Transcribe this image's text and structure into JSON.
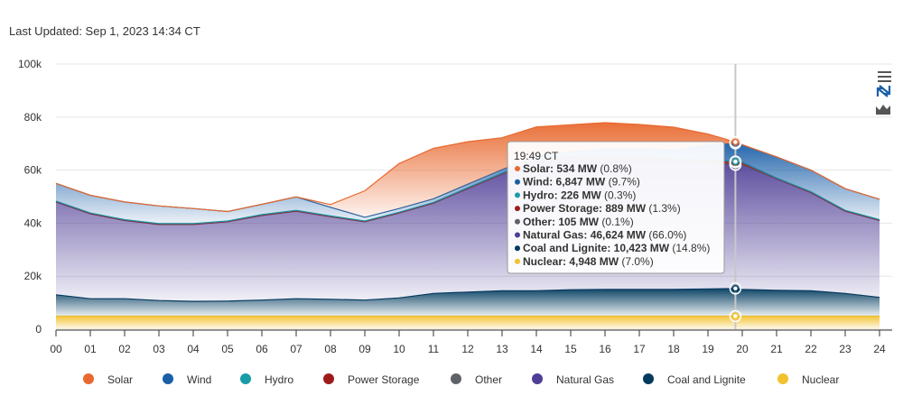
{
  "last_updated": "Last Updated: Sep 1, 2023 14:34 CT",
  "toolbar": {
    "menu_icon": "hamburger-menu-icon",
    "zoom_icon": "reset-zoom-icon",
    "chart_type_icon": "area-chart-icon"
  },
  "chart_data": {
    "type": "area",
    "stacked": true,
    "x": [
      0,
      1,
      2,
      3,
      4,
      5,
      6,
      7,
      8,
      9,
      10,
      11,
      12,
      13,
      14,
      15,
      16,
      17,
      18,
      19,
      19.8,
      20,
      21,
      22,
      23,
      24
    ],
    "xticks": [
      "00",
      "01",
      "02",
      "03",
      "04",
      "05",
      "06",
      "07",
      "08",
      "09",
      "10",
      "11",
      "12",
      "13",
      "14",
      "15",
      "16",
      "17",
      "18",
      "19",
      "20",
      "21",
      "22",
      "23",
      "24"
    ],
    "ylim": [
      0,
      100000
    ],
    "yticks": [
      {
        "value": 0,
        "label": "0"
      },
      {
        "value": 20000,
        "label": "20k"
      },
      {
        "value": 40000,
        "label": "40k"
      },
      {
        "value": 60000,
        "label": "60k"
      },
      {
        "value": 80000,
        "label": "80k"
      },
      {
        "value": 100000,
        "label": "100k"
      }
    ],
    "series": [
      {
        "name": "Nuclear",
        "color": "#f2c12e",
        "values": [
          4948,
          4948,
          4948,
          4948,
          4948,
          4948,
          4948,
          4948,
          4948,
          4948,
          4948,
          4948,
          4948,
          4948,
          4948,
          4948,
          4948,
          4948,
          4948,
          4948,
          4948,
          4948,
          4948,
          4948,
          4948,
          4948
        ]
      },
      {
        "name": "Coal and Lignite",
        "color": "#003a5d",
        "values": [
          8052,
          6552,
          6552,
          5852,
          5552,
          5652,
          6052,
          6552,
          6352,
          6052,
          6852,
          8552,
          9052,
          9552,
          9552,
          9952,
          10052,
          10052,
          10052,
          10252,
          10423,
          10052,
          9752,
          9552,
          8552,
          7052
        ]
      },
      {
        "name": "Natural Gas",
        "color": "#4f3e96",
        "values": [
          35000,
          32000,
          29500,
          28700,
          29000,
          29900,
          31900,
          33000,
          31100,
          29500,
          32000,
          34000,
          39000,
          44000,
          49000,
          50000,
          50000,
          50000,
          49000,
          47800,
          46624,
          47000,
          42000,
          37000,
          31000,
          29000
        ]
      },
      {
        "name": "Other",
        "color": "#5f6368",
        "values": [
          105,
          105,
          105,
          105,
          105,
          105,
          105,
          105,
          105,
          105,
          105,
          105,
          105,
          105,
          105,
          105,
          105,
          105,
          105,
          105,
          105,
          105,
          105,
          105,
          105,
          105
        ]
      },
      {
        "name": "Power Storage",
        "color": "#9e1b1b",
        "values": [
          0,
          0,
          0,
          0,
          0,
          0,
          0,
          0,
          0,
          0,
          0,
          0,
          0,
          0,
          0,
          0,
          0,
          0,
          0,
          600,
          889,
          600,
          0,
          0,
          0,
          0
        ]
      },
      {
        "name": "Hydro",
        "color": "#1a9ba8",
        "values": [
          226,
          226,
          226,
          226,
          226,
          226,
          226,
          226,
          226,
          226,
          226,
          226,
          226,
          226,
          226,
          226,
          226,
          226,
          226,
          226,
          226,
          226,
          226,
          226,
          226,
          226
        ]
      },
      {
        "name": "Wind",
        "color": "#1a5fa8",
        "values": [
          6669,
          6669,
          6669,
          6669,
          5669,
          3569,
          3869,
          5069,
          3269,
          1369,
          1369,
          1369,
          1369,
          1369,
          1469,
          1869,
          2869,
          2869,
          3369,
          5669,
          6847,
          6669,
          7969,
          8169,
          8169,
          7669
        ]
      },
      {
        "name": "Solar",
        "color": "#e8692f",
        "values": [
          0,
          0,
          0,
          0,
          0,
          0,
          0,
          0,
          1000,
          10000,
          17000,
          19000,
          16000,
          12000,
          11000,
          10000,
          9700,
          9000,
          8500,
          4000,
          534,
          0,
          0,
          0,
          0,
          0
        ]
      }
    ],
    "legend_order": [
      "Solar",
      "Wind",
      "Hydro",
      "Power Storage",
      "Other",
      "Natural Gas",
      "Coal and Lignite",
      "Nuclear"
    ],
    "legend_position": "bottom",
    "crosshair_x": 19.8,
    "tooltip": {
      "title": "19:49 CT",
      "rows": [
        {
          "name": "Solar",
          "label": "Solar: 534 MW",
          "pct": "(0.8%)",
          "color": "#e8692f"
        },
        {
          "name": "Wind",
          "label": "Wind: 6,847 MW",
          "pct": "(9.7%)",
          "color": "#1a5fa8"
        },
        {
          "name": "Hydro",
          "label": "Hydro: 226 MW",
          "pct": "(0.3%)",
          "color": "#1a9ba8"
        },
        {
          "name": "Power Storage",
          "label": "Power Storage: 889 MW",
          "pct": "(1.3%)",
          "color": "#9e1b1b"
        },
        {
          "name": "Other",
          "label": "Other: 105 MW",
          "pct": "(0.1%)",
          "color": "#5f6368"
        },
        {
          "name": "Natural Gas",
          "label": "Natural Gas: 46,624 MW",
          "pct": "(66.0%)",
          "color": "#4f3e96"
        },
        {
          "name": "Coal and Lignite",
          "label": "Coal and Lignite: 10,423 MW",
          "pct": "(14.8%)",
          "color": "#003a5d"
        },
        {
          "name": "Nuclear",
          "label": "Nuclear: 4,948 MW",
          "pct": "(7.0%)",
          "color": "#f2c12e"
        }
      ]
    }
  }
}
